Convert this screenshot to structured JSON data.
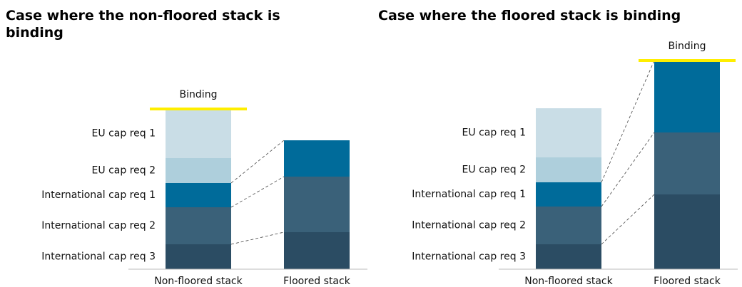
{
  "chart_data": [
    {
      "type": "bar",
      "stacked": true,
      "title": "Case where the non-floored stack is binding",
      "categories": [
        "Non-floored stack",
        "Floored stack"
      ],
      "series": [
        {
          "name": "International cap req 3",
          "color": "#2b4c63",
          "values": [
            35,
            52
          ]
        },
        {
          "name": "International cap req 2",
          "color": "#3a6179",
          "values": [
            52,
            78
          ]
        },
        {
          "name": "International cap req 1",
          "color": "#006b9a",
          "values": [
            34,
            51
          ]
        },
        {
          "name": "EU cap req 2",
          "color": "#aecfdc",
          "values": [
            35,
            null
          ]
        },
        {
          "name": "EU cap req 1",
          "color": "#c9dde6",
          "values": [
            69,
            null
          ]
        }
      ],
      "annotation": "Binding",
      "annotation_color": "#ffee00"
    },
    {
      "type": "bar",
      "stacked": true,
      "title": "Case where the floored stack is binding",
      "categories": [
        "Non-floored stack",
        "Floored stack"
      ],
      "series": [
        {
          "name": "International cap req 3",
          "color": "#2b4c63",
          "values": [
            35,
            105
          ]
        },
        {
          "name": "International cap req 2",
          "color": "#3a6179",
          "values": [
            53,
            87
          ]
        },
        {
          "name": "International cap req 1",
          "color": "#006b9a",
          "values": [
            34,
            101
          ]
        },
        {
          "name": "EU cap req 2",
          "color": "#aecfdc",
          "values": [
            35,
            null
          ]
        },
        {
          "name": "EU cap req 1",
          "color": "#c9dde6",
          "values": [
            69,
            null
          ]
        }
      ],
      "annotation": "Binding",
      "annotation_color": "#ffee00"
    }
  ]
}
